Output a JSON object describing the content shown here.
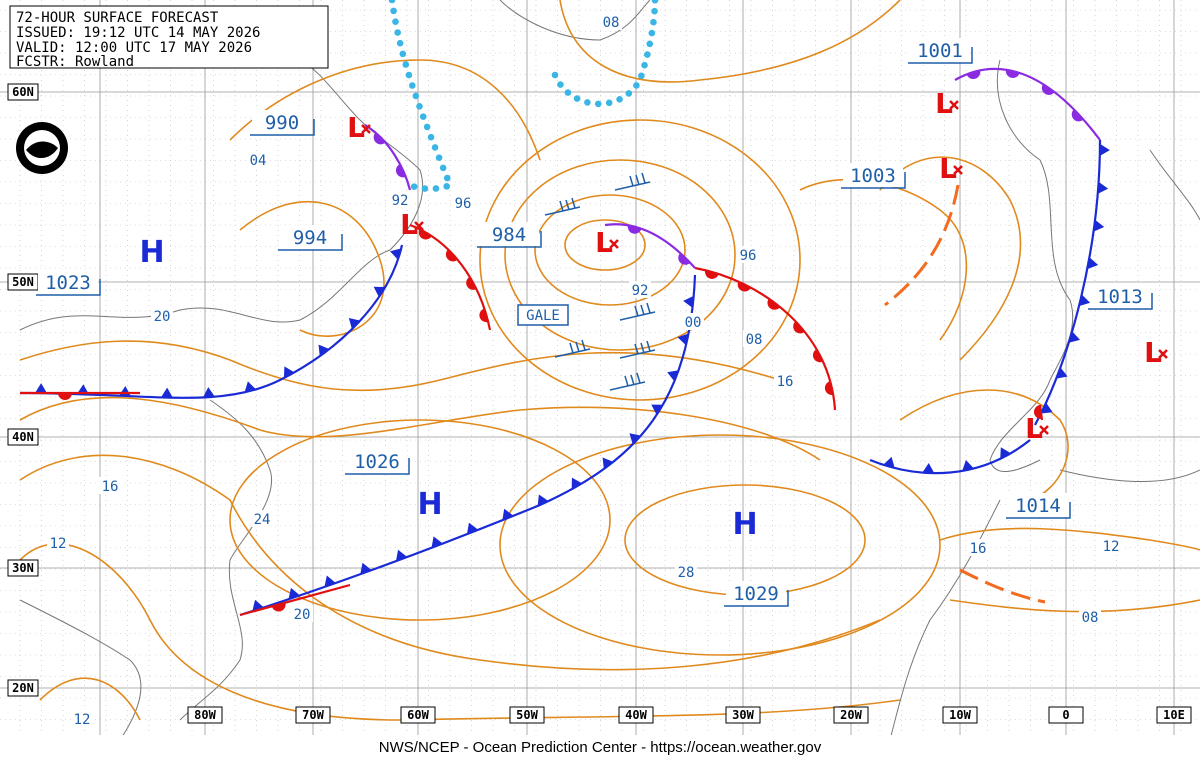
{
  "header": {
    "title": "72-HOUR SURFACE FORECAST",
    "issued": "ISSUED: 19:12 UTC 14 MAY 2026",
    "valid": "VALID: 12:00 UTC 17 MAY 2026",
    "forecaster": "FCSTR: Rowland"
  },
  "latitude_labels": [
    "60N",
    "50N",
    "40N",
    "30N",
    "20N"
  ],
  "longitude_labels": [
    "80W",
    "70W",
    "60W",
    "50W",
    "40W",
    "30W",
    "20W",
    "10W",
    "0",
    "10E"
  ],
  "highs": [
    "H",
    "H",
    "H"
  ],
  "lows": [
    "L",
    "L",
    "L",
    "L",
    "L",
    "L",
    "L"
  ],
  "pressure_labels": [
    "990",
    "994",
    "984",
    "1001",
    "1003",
    "1013",
    "1023",
    "1026",
    "1029",
    "1014"
  ],
  "isobar_labels": [
    "08",
    "04",
    "92",
    "96",
    "92",
    "00",
    "96",
    "08",
    "16",
    "20",
    "16",
    "12",
    "24",
    "20",
    "28",
    "16",
    "12",
    "08",
    "12"
  ],
  "warning": "GALE",
  "footer": "NWS/NCEP - Ocean Prediction Center - https://ocean.weather.gov"
}
